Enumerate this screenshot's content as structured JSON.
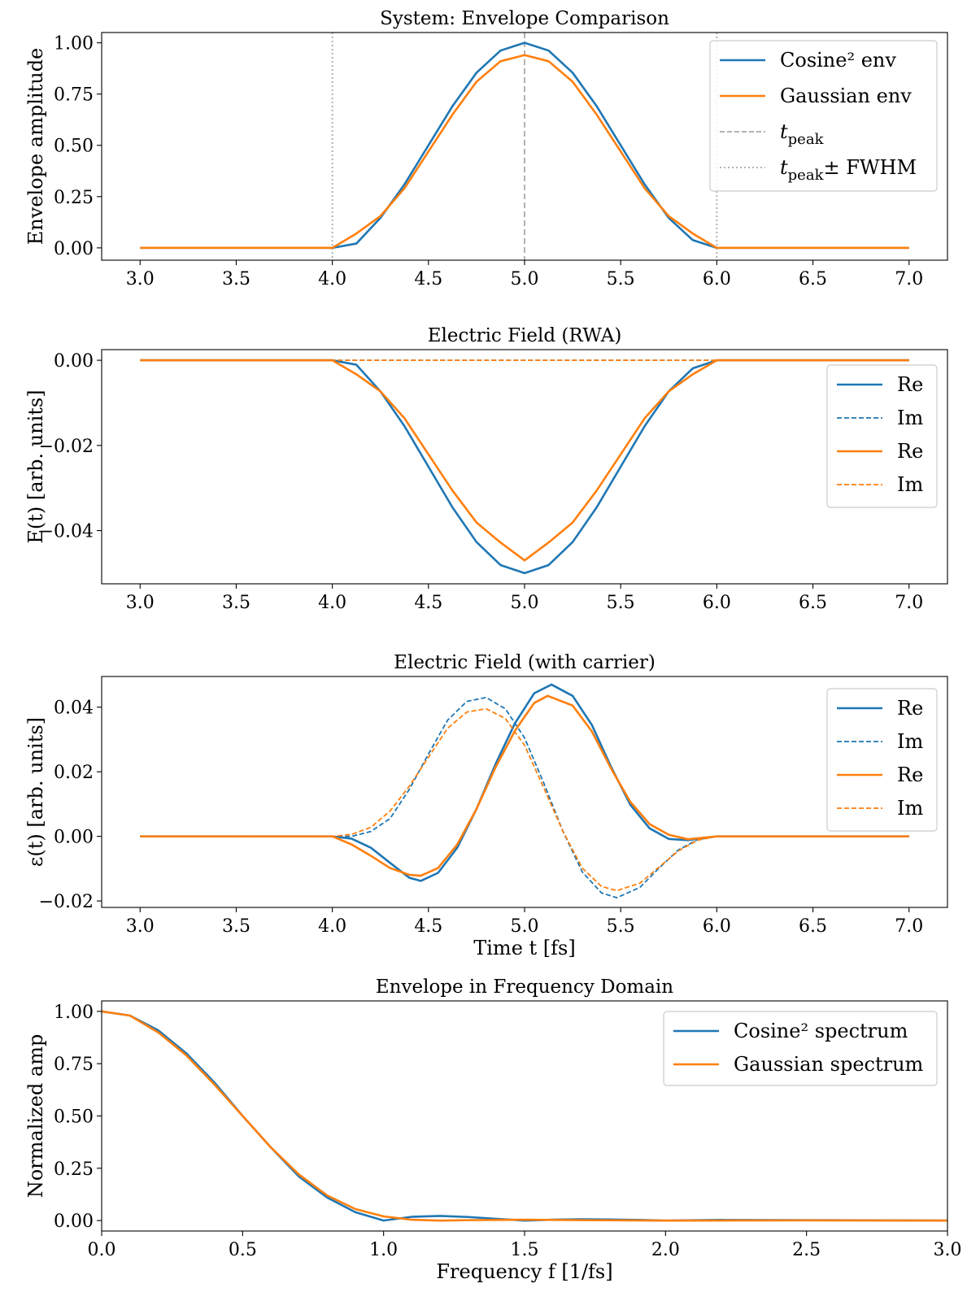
{
  "colors": {
    "blue": "#1f77b4",
    "orange": "#ff7f0e",
    "gray": "#aaaaaa"
  },
  "chart_data": [
    {
      "type": "line",
      "title": "System: Envelope Comparison",
      "xlabel": "",
      "ylabel": "Envelope amplitude",
      "xlim": [
        2.8,
        7.2
      ],
      "ylim": [
        -0.06,
        1.05
      ],
      "xticks": [
        "3.0",
        "3.5",
        "4.0",
        "4.5",
        "5.0",
        "5.5",
        "6.0",
        "6.5",
        "7.0"
      ],
      "yticks": [
        "0.00",
        "0.25",
        "0.50",
        "0.75",
        "1.00"
      ],
      "legend_position": "top-right",
      "series": [
        {
          "name": "Cosine² env",
          "color": "#1f77b4",
          "style": "solid",
          "x": [
            3.0,
            3.5,
            4.0,
            4.125,
            4.25,
            4.375,
            4.5,
            4.625,
            4.75,
            4.875,
            5.0,
            5.125,
            5.25,
            5.375,
            5.5,
            5.625,
            5.75,
            5.875,
            6.0,
            6.5,
            7.0
          ],
          "y": [
            0,
            0,
            0,
            0.021,
            0.146,
            0.309,
            0.5,
            0.691,
            0.854,
            0.962,
            1.0,
            0.962,
            0.854,
            0.691,
            0.5,
            0.309,
            0.146,
            0.038,
            0,
            0,
            0
          ]
        },
        {
          "name": "Gaussian env",
          "color": "#ff7f0e",
          "style": "solid",
          "x": [
            3.0,
            3.5,
            4.0,
            4.125,
            4.25,
            4.375,
            4.5,
            4.625,
            4.75,
            4.875,
            5.0,
            5.125,
            5.25,
            5.375,
            5.5,
            5.625,
            5.75,
            5.875,
            6.0,
            6.5,
            7.0
          ],
          "y": [
            0,
            0,
            0,
            0.07,
            0.155,
            0.29,
            0.47,
            0.65,
            0.81,
            0.91,
            0.94,
            0.91,
            0.81,
            0.65,
            0.47,
            0.29,
            0.155,
            0.07,
            0,
            0,
            0
          ]
        }
      ],
      "vlines": [
        {
          "name": "t_peak",
          "x": 5.0,
          "style": "dashed"
        },
        {
          "name": "t_peak± FWHM",
          "x": 4.0,
          "style": "dotted"
        },
        {
          "name": "",
          "x": 6.0,
          "style": "dotted"
        }
      ],
      "legend": [
        {
          "label": "Cosine² env",
          "color": "#1f77b4",
          "style": "solid"
        },
        {
          "label": "Gaussian env",
          "color": "#ff7f0e",
          "style": "solid"
        },
        {
          "label": "t",
          "sub": "peak",
          "color": "#aaaaaa",
          "style": "dashed"
        },
        {
          "label": "t",
          "sub": "peak",
          "suffix": "± FWHM",
          "color": "#aaaaaa",
          "style": "dotted"
        }
      ]
    },
    {
      "type": "line",
      "title": "Electric Field (RWA)",
      "xlabel": "",
      "ylabel": "E(t) [arb. units]",
      "xlim": [
        2.8,
        7.2
      ],
      "ylim": [
        -0.0525,
        0.0025
      ],
      "xticks": [
        "3.0",
        "3.5",
        "4.0",
        "4.5",
        "5.0",
        "5.5",
        "6.0",
        "6.5",
        "7.0"
      ],
      "yticks": [
        "0.00",
        "−0.02",
        "−0.04"
      ],
      "ytick_values": [
        0.0,
        -0.02,
        -0.04
      ],
      "legend_position": "top-right",
      "series": [
        {
          "name": "Re",
          "color": "#1f77b4",
          "style": "solid",
          "x": [
            3.0,
            3.5,
            4.0,
            4.125,
            4.25,
            4.375,
            4.5,
            4.625,
            4.75,
            4.875,
            5.0,
            5.125,
            5.25,
            5.375,
            5.5,
            5.625,
            5.75,
            5.875,
            6.0,
            6.5,
            7.0
          ],
          "y": [
            0,
            0,
            0,
            -0.00105,
            -0.0073,
            -0.01545,
            -0.025,
            -0.03455,
            -0.0427,
            -0.0481,
            -0.05,
            -0.0481,
            -0.0427,
            -0.03455,
            -0.025,
            -0.01545,
            -0.0073,
            -0.0019,
            0,
            0,
            0
          ]
        },
        {
          "name": "Im",
          "color": "#1f77b4",
          "style": "dashed",
          "x": [
            3.0,
            7.0
          ],
          "y": [
            0,
            0
          ]
        },
        {
          "name": "Re",
          "color": "#ff7f0e",
          "style": "solid",
          "x": [
            3.0,
            3.5,
            4.0,
            4.125,
            4.25,
            4.375,
            4.5,
            4.625,
            4.75,
            4.875,
            5.0,
            5.125,
            5.25,
            5.375,
            5.5,
            5.625,
            5.75,
            5.875,
            6.0,
            6.5,
            7.0
          ],
          "y": [
            0,
            0,
            0,
            -0.0033,
            -0.0073,
            -0.0136,
            -0.0221,
            -0.0306,
            -0.0381,
            -0.0428,
            -0.047,
            -0.0428,
            -0.0381,
            -0.0306,
            -0.0221,
            -0.0136,
            -0.0073,
            -0.0033,
            0,
            0,
            0
          ]
        },
        {
          "name": "Im",
          "color": "#ff7f0e",
          "style": "dashed",
          "x": [
            3.0,
            7.0
          ],
          "y": [
            0,
            0
          ]
        }
      ]
    },
    {
      "type": "line",
      "title": "Electric Field (with carrier)",
      "xlabel": "Time t [fs]",
      "ylabel": "ε(t) [arb. units]",
      "xlim": [
        2.8,
        7.2
      ],
      "ylim": [
        -0.022,
        0.0495
      ],
      "xticks": [
        "3.0",
        "3.5",
        "4.0",
        "4.5",
        "5.0",
        "5.5",
        "6.0",
        "6.5",
        "7.0"
      ],
      "yticks": [
        "0.04",
        "0.02",
        "0.00",
        "−0.02"
      ],
      "ytick_values": [
        0.04,
        0.02,
        0.0,
        -0.02
      ],
      "legend_position": "top-right",
      "series": [
        {
          "name": "Re",
          "color": "#1f77b4",
          "style": "solid",
          "x": [
            3.0,
            4.0,
            4.1,
            4.2,
            4.3,
            4.4,
            4.46,
            4.55,
            4.65,
            4.75,
            4.85,
            4.95,
            5.05,
            5.14,
            5.25,
            5.35,
            5.45,
            5.55,
            5.65,
            5.75,
            5.85,
            5.95,
            6.0,
            7.0
          ],
          "y": [
            0,
            0,
            -0.0007,
            -0.0035,
            -0.0082,
            -0.0128,
            -0.0138,
            -0.0113,
            -0.0035,
            0.0085,
            0.0225,
            0.035,
            0.0443,
            0.047,
            0.0435,
            0.0345,
            0.0215,
            0.0098,
            0.0025,
            -0.0008,
            -0.0012,
            -0.0004,
            0,
            0
          ]
        },
        {
          "name": "Im",
          "color": "#1f77b4",
          "style": "dashed",
          "x": [
            3.0,
            4.0,
            4.1,
            4.2,
            4.3,
            4.4,
            4.5,
            4.6,
            4.7,
            4.8,
            4.9,
            5.0,
            5.1,
            5.2,
            5.3,
            5.4,
            5.48,
            5.6,
            5.7,
            5.8,
            5.9,
            6.0,
            7.0
          ],
          "y": [
            0,
            0,
            0,
            0.0015,
            0.0055,
            0.0145,
            0.0255,
            0.036,
            0.0418,
            0.043,
            0.0395,
            0.0305,
            0.0165,
            0.0015,
            -0.011,
            -0.0175,
            -0.019,
            -0.0158,
            -0.0098,
            -0.0042,
            -0.001,
            0,
            0
          ]
        },
        {
          "name": "Re",
          "color": "#ff7f0e",
          "style": "solid",
          "x": [
            3.0,
            4.0,
            4.1,
            4.2,
            4.3,
            4.4,
            4.46,
            4.55,
            4.65,
            4.75,
            4.85,
            4.95,
            5.05,
            5.12,
            5.25,
            5.35,
            5.45,
            5.55,
            5.65,
            5.75,
            5.85,
            5.95,
            6.0,
            7.0
          ],
          "y": [
            0,
            0,
            -0.0025,
            -0.006,
            -0.0098,
            -0.0119,
            -0.0122,
            -0.0098,
            -0.0025,
            0.0085,
            0.0215,
            0.0327,
            0.0413,
            0.0435,
            0.0405,
            0.0325,
            0.021,
            0.0107,
            0.0038,
            0.0005,
            -0.0009,
            -0.0003,
            0,
            0
          ]
        },
        {
          "name": "Im",
          "color": "#ff7f0e",
          "style": "dashed",
          "x": [
            3.0,
            4.0,
            4.1,
            4.2,
            4.3,
            4.4,
            4.5,
            4.6,
            4.7,
            4.8,
            4.9,
            5.0,
            5.1,
            5.2,
            5.3,
            5.4,
            5.48,
            5.6,
            5.7,
            5.8,
            5.9,
            6.0,
            7.0
          ],
          "y": [
            0,
            0,
            0.0006,
            0.0028,
            0.0078,
            0.0155,
            0.0245,
            0.0335,
            0.0385,
            0.0395,
            0.0365,
            0.0282,
            0.015,
            0.0015,
            -0.0098,
            -0.0155,
            -0.0168,
            -0.0145,
            -0.0095,
            -0.0045,
            -0.0012,
            0,
            0
          ]
        }
      ]
    },
    {
      "type": "line",
      "title": "Envelope in Frequency Domain",
      "xlabel": "Frequency f [1/fs]",
      "ylabel": "Normalized amp",
      "xlim": [
        0,
        3.0
      ],
      "ylim": [
        -0.05,
        1.05
      ],
      "xticks": [
        "0.0",
        "0.5",
        "1.0",
        "1.5",
        "2.0",
        "2.5",
        "3.0"
      ],
      "yticks": [
        "0.00",
        "0.25",
        "0.50",
        "0.75",
        "1.00"
      ],
      "legend_position": "top-right",
      "series": [
        {
          "name": "Cosine² spectrum",
          "color": "#1f77b4",
          "style": "solid",
          "x": [
            0,
            0.1,
            0.2,
            0.3,
            0.4,
            0.5,
            0.6,
            0.7,
            0.8,
            0.9,
            1.0,
            1.1,
            1.2,
            1.3,
            1.4,
            1.5,
            1.6,
            1.7,
            1.8,
            1.9,
            2.0,
            2.2,
            2.5,
            3.0
          ],
          "y": [
            1.0,
            0.98,
            0.91,
            0.8,
            0.66,
            0.5,
            0.35,
            0.21,
            0.11,
            0.04,
            0.0,
            0.018,
            0.022,
            0.017,
            0.008,
            0.0,
            0.004,
            0.006,
            0.005,
            0.003,
            0.0,
            0.003,
            0.002,
            0.0
          ]
        },
        {
          "name": "Gaussian spectrum",
          "color": "#ff7f0e",
          "style": "solid",
          "x": [
            0,
            0.1,
            0.2,
            0.3,
            0.4,
            0.5,
            0.6,
            0.7,
            0.8,
            0.9,
            1.0,
            1.1,
            1.2,
            1.3,
            1.5,
            1.7,
            2.0,
            2.5,
            3.0
          ],
          "y": [
            1.0,
            0.98,
            0.9,
            0.79,
            0.65,
            0.5,
            0.35,
            0.22,
            0.12,
            0.055,
            0.02,
            0.004,
            0.0,
            0.002,
            0.004,
            0.002,
            0.0,
            0.001,
            0.0
          ]
        }
      ]
    }
  ]
}
